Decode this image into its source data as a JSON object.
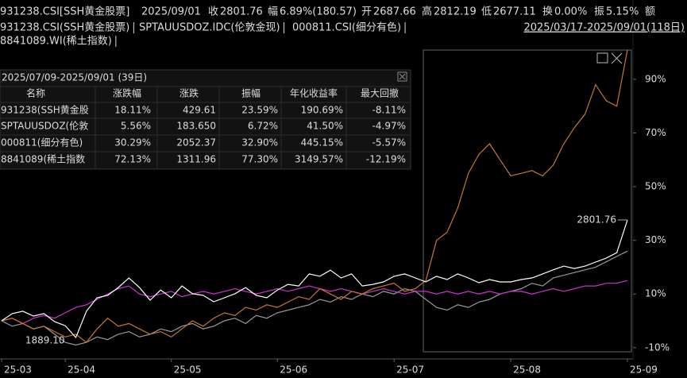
{
  "header": {
    "code": "931238.CSI[SSH黄金股票]",
    "date": "2025/09/01",
    "fields": [
      {
        "label": "收",
        "value": "2801.76",
        "color": "#ff3b3b"
      },
      {
        "label": "幅",
        "value": "6.89%(180.57)",
        "color": "#ff3b3b"
      },
      {
        "label": "开",
        "value": "2687.66",
        "color": "#ff3b3b"
      },
      {
        "label": "高",
        "value": "2812.19",
        "color": "#ff3b3b"
      },
      {
        "label": "低",
        "value": "2677.11",
        "color": "#ff3b3b"
      },
      {
        "label": "换",
        "value": "0.00%",
        "color": "#e0e0e0"
      },
      {
        "label": "振",
        "value": "5.15%",
        "color": "#e0e0e0"
      },
      {
        "label": "额"
      }
    ]
  },
  "range": "2025/03/17-2025/09/01(118日)",
  "table": {
    "title": "2025/07/09-2025/09/01 (39日)",
    "columns": [
      "名称",
      "涨跌幅",
      "涨跌",
      "振幅",
      "年化收益率",
      "最大回撤"
    ],
    "rows": [
      [
        "931238(SSH黄金股",
        "18.11%",
        "429.61",
        "23.59%",
        "190.69%",
        "-8.11%"
      ],
      [
        "SPTAUUSDOZ(伦敦",
        "5.56%",
        "183.650",
        "6.72%",
        "41.50%",
        "-4.97%"
      ],
      [
        "000811(细分有色)",
        "30.29%",
        "2052.37",
        "32.90%",
        "445.15%",
        "-5.57%"
      ],
      [
        "8841089(稀土指数",
        "72.13%",
        "1311.96",
        "77.30%",
        "3149.57%",
        "-12.19%"
      ]
    ]
  },
  "chart_data": {
    "type": "line",
    "categories": [
      "25-03",
      null,
      null,
      null,
      null,
      null,
      "25-04",
      null,
      null,
      null,
      null,
      null,
      null,
      null,
      null,
      null,
      "25-05",
      null,
      null,
      null,
      null,
      null,
      null,
      null,
      null,
      null,
      "25-06",
      null,
      null,
      null,
      null,
      null,
      null,
      null,
      null,
      null,
      null,
      "25-07",
      null,
      null,
      null,
      null,
      null,
      null,
      null,
      null,
      null,
      null,
      "25-08",
      null,
      null,
      null,
      null,
      null,
      null,
      null,
      null,
      null,
      null,
      "25-09"
    ],
    "series": [
      {
        "name": "931238.CSI(SSH黄金股票)",
        "color": "#ffffff",
        "values": [
          0,
          2.7,
          3.6,
          1.8,
          2.7,
          -0.3,
          -1.8,
          -6.2,
          3.6,
          8.6,
          9.5,
          12.4,
          16.0,
          12.4,
          7.7,
          11.5,
          8.6,
          13.0,
          10.1,
          9.5,
          7.1,
          8.6,
          10.1,
          12.4,
          9.5,
          8.6,
          11.5,
          13.6,
          13.0,
          17.5,
          16.6,
          18.9,
          16.0,
          17.5,
          13.0,
          13.6,
          14.5,
          16.6,
          17.5,
          16.0,
          14.5,
          16.6,
          15.4,
          17.5,
          16.0,
          14.2,
          15.4,
          14.5,
          14.5,
          15.4,
          16.0,
          17.5,
          19.0,
          20.4,
          19.5,
          20.4,
          21.9,
          23.4,
          25.4,
          37.6
        ]
      },
      {
        "name": "SPTAUUSDOZ.IDC(伦敦金现)",
        "color": "#cc33cc",
        "values": [
          0,
          1,
          -1,
          1,
          2,
          1,
          3,
          5,
          6,
          8,
          10,
          12,
          13,
          10,
          9,
          10,
          11,
          9,
          10,
          11,
          10,
          11,
          12,
          11,
          10,
          11,
          12,
          11,
          12,
          13,
          12,
          11,
          12,
          11,
          10,
          11,
          12,
          11,
          10,
          11,
          11,
          10,
          11,
          10,
          11,
          10,
          11,
          10,
          11,
          11,
          10,
          11,
          12,
          11,
          12,
          13,
          13,
          14,
          14,
          15
        ]
      },
      {
        "name": "000811.CSI(细分有色)",
        "color": "#9a9a9a",
        "values": [
          0,
          -2,
          -1,
          -3,
          -2,
          -5,
          -8,
          -9,
          -8,
          -6,
          -7,
          -5,
          -4,
          -6,
          -5,
          -3,
          -4,
          -2,
          -1,
          -3,
          -2,
          0,
          1,
          -1,
          2,
          1,
          3,
          4,
          5,
          6,
          8,
          7,
          9,
          8,
          10,
          9,
          11,
          10,
          12,
          11,
          8,
          5,
          4,
          6,
          5,
          7,
          8,
          10,
          11,
          12,
          14,
          13,
          16,
          17,
          18,
          19,
          20,
          22,
          24,
          26
        ]
      },
      {
        "name": "8841089.WI(稀土指数)",
        "color": "#c8782a",
        "values": [
          0,
          1,
          -1,
          -3,
          -2,
          -4,
          -6,
          -5,
          -8,
          -3,
          1,
          -2,
          -1,
          -3,
          -5,
          -4,
          -6,
          -3,
          0,
          -2,
          1,
          3,
          2,
          5,
          4,
          6,
          5,
          7,
          9,
          8,
          12,
          10,
          8,
          11,
          10,
          12,
          13,
          14,
          11,
          12,
          15,
          30,
          33,
          42,
          55,
          62,
          66,
          60,
          54,
          55,
          56,
          54,
          58,
          66,
          72,
          77,
          88,
          82,
          80,
          101
        ]
      }
    ],
    "ylim": [
      -13.6,
      101.8
    ],
    "yticks": [
      {
        "value": -10,
        "label": "-10%"
      },
      {
        "value": 10,
        "label": "10%"
      },
      {
        "value": 30,
        "label": "30%"
      },
      {
        "value": 50,
        "label": "50%"
      },
      {
        "value": 70,
        "label": "70%"
      },
      {
        "value": 90,
        "label": "90%"
      }
    ],
    "min_label": "1889.10",
    "last_label": "2801.76"
  }
}
